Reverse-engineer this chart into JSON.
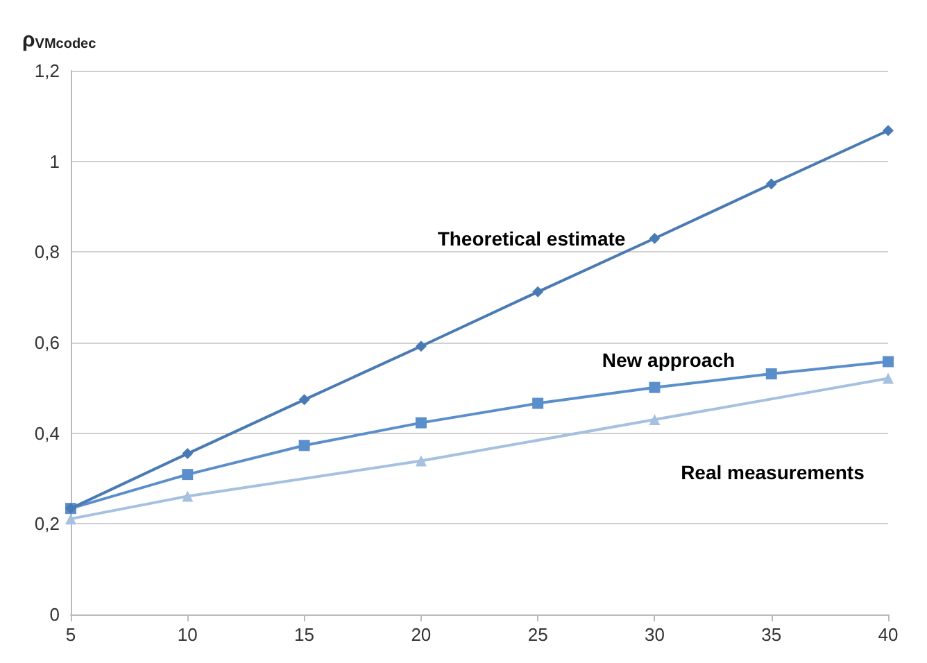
{
  "chart_data": {
    "type": "line",
    "ylabel": "ρ$_{VMcodec}$",
    "x": [
      5,
      10,
      15,
      20,
      25,
      30,
      35,
      40
    ],
    "series": [
      {
        "name": "Theoretical estimate",
        "color": "#4a7ab4",
        "marker": "diamond",
        "values": [
          0.234,
          0.355,
          0.474,
          0.592,
          0.712,
          0.83,
          0.95,
          1.068
        ]
      },
      {
        "name": "New approach",
        "color": "#5b8fcb",
        "marker": "square",
        "values": [
          0.234,
          0.309,
          0.373,
          0.423,
          0.466,
          0.501,
          0.531,
          0.558
        ]
      },
      {
        "name": "Real measurements",
        "color": "#a6c0e0",
        "marker": "triangle",
        "x": [
          5,
          10,
          20,
          30,
          40
        ],
        "values": [
          0.211,
          0.261,
          0.339,
          0.43,
          0.521
        ]
      }
    ],
    "xlim": [
      5,
      40
    ],
    "xticks": [
      5,
      10,
      15,
      20,
      25,
      30,
      35,
      40
    ],
    "ylim": [
      0,
      1.2
    ],
    "yticks": [
      0,
      {
        "value": 0.2,
        "label": "0,2"
      },
      {
        "value": 0.4,
        "label": "0,4"
      },
      {
        "value": 0.6,
        "label": "0,6"
      },
      {
        "value": 0.8,
        "label": "0,8"
      },
      1,
      {
        "value": 1.2,
        "label": "1,2"
      }
    ],
    "grid": "y",
    "legend": false
  }
}
